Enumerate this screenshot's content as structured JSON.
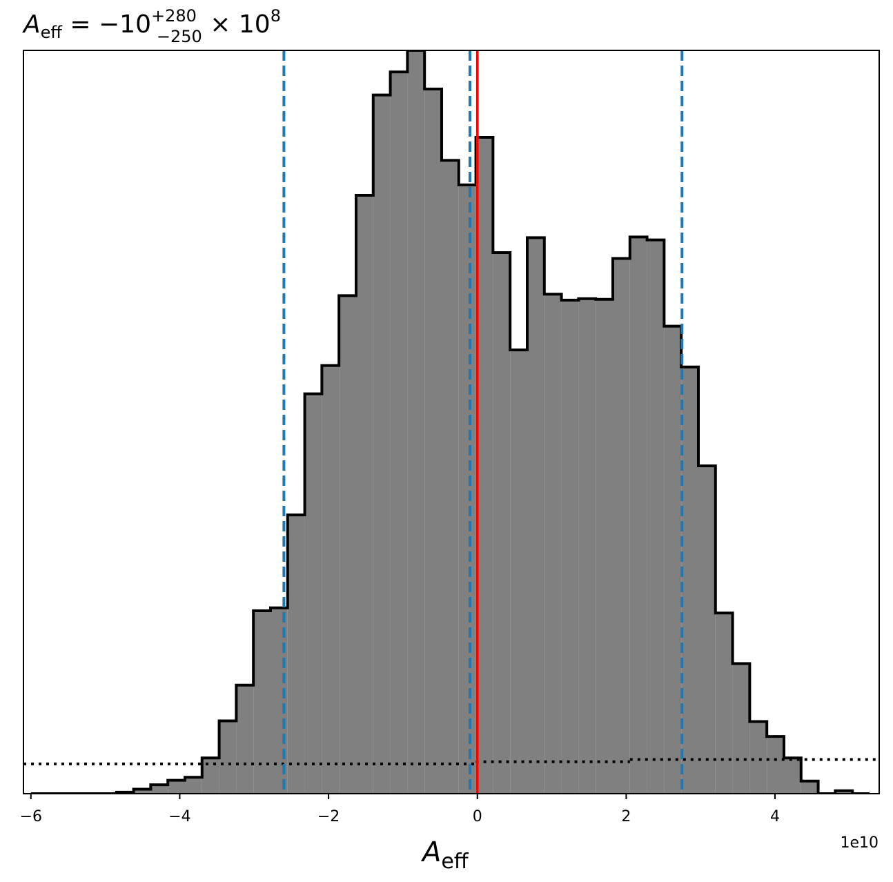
{
  "title": {
    "symbol": "A",
    "symbol_sub": "eff",
    "equals": " = −10",
    "sup": "+280",
    "sub": "−250",
    "times": " × 10",
    "exp": "8"
  },
  "chart_data": {
    "type": "histogram",
    "xlabel": {
      "symbol": "A",
      "sub": "eff"
    },
    "offset_text": "1e10",
    "xlim": [
      -6.1,
      5.4
    ],
    "ylim": [
      0,
      1.0
    ],
    "x_ticks": [
      -6,
      -4,
      -2,
      0,
      2,
      4
    ],
    "x_tick_labels": [
      "−6",
      "−4",
      "−2",
      "0",
      "2",
      "4"
    ],
    "bin_edges": [
      -6.0,
      -5.77,
      -5.54,
      -5.31,
      -5.08,
      -4.85,
      -4.62,
      -4.39,
      -4.16,
      -3.93,
      -3.7,
      -3.47,
      -3.24,
      -3.01,
      -2.78,
      -2.55,
      -2.32,
      -2.09,
      -1.86,
      -1.63,
      -1.4,
      -1.17,
      -0.94,
      -0.71,
      -0.48,
      -0.25,
      -0.02,
      0.21,
      0.44,
      0.67,
      0.9,
      1.13,
      1.36,
      1.59,
      1.82,
      2.05,
      2.28,
      2.51,
      2.74,
      2.97,
      3.2,
      3.43,
      3.66,
      3.89,
      4.12,
      4.35,
      4.58,
      4.81,
      5.04,
      5.27
    ],
    "values": [
      0.0,
      0.0,
      0.0,
      0.0,
      0.0,
      0.002,
      0.006,
      0.012,
      0.018,
      0.022,
      0.048,
      0.098,
      0.146,
      0.246,
      0.25,
      0.375,
      0.538,
      0.576,
      0.67,
      0.805,
      0.94,
      0.971,
      1.0,
      0.948,
      0.852,
      0.819,
      0.883,
      0.728,
      0.597,
      0.748,
      0.672,
      0.664,
      0.666,
      0.665,
      0.72,
      0.749,
      0.745,
      0.629,
      0.574,
      0.441,
      0.243,
      0.175,
      0.097,
      0.077,
      0.048,
      0.017,
      0.0,
      0.004,
      0.0
    ],
    "fill_color": "#808080",
    "edge_color": "#000000",
    "reference_line": {
      "x": 0.0,
      "color": "#ff0000"
    },
    "quantile_lines": {
      "x": [
        -2.6,
        -0.1,
        2.75
      ],
      "color": "#1f77b4",
      "style": "dashed"
    },
    "prior_line": {
      "style": "dotted",
      "color": "#000000",
      "segments": [
        {
          "x": [
            -6.1,
            -0.02
          ],
          "y": 0.04
        },
        {
          "x": [
            -0.02,
            2.05
          ],
          "y": 0.043
        },
        {
          "x": [
            2.05,
            5.4
          ],
          "y": 0.046
        }
      ]
    }
  }
}
